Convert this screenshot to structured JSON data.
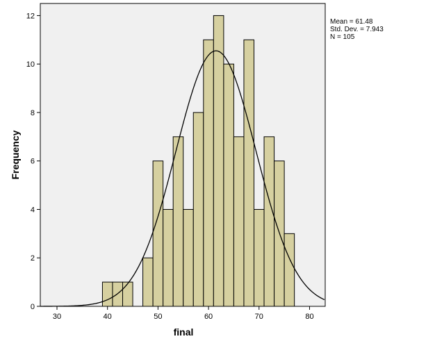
{
  "chart_data": {
    "type": "bar",
    "subtype": "histogram",
    "xlabel": "final",
    "ylabel": "Frequency",
    "xlim": [
      26.7,
      83.1
    ],
    "ylim": [
      0,
      12.5
    ],
    "x_ticks": [
      30,
      40,
      50,
      60,
      70,
      80
    ],
    "y_ticks": [
      0,
      2,
      4,
      6,
      8,
      10,
      12
    ],
    "bin_width": 2,
    "bins": [
      {
        "start": 39,
        "end": 41,
        "count": 1
      },
      {
        "start": 41,
        "end": 43,
        "count": 1
      },
      {
        "start": 43,
        "end": 45,
        "count": 1
      },
      {
        "start": 47,
        "end": 49,
        "count": 2
      },
      {
        "start": 49,
        "end": 51,
        "count": 6
      },
      {
        "start": 51,
        "end": 53,
        "count": 4
      },
      {
        "start": 53,
        "end": 55,
        "count": 7
      },
      {
        "start": 55,
        "end": 57,
        "count": 4
      },
      {
        "start": 57,
        "end": 59,
        "count": 8
      },
      {
        "start": 59,
        "end": 61,
        "count": 11
      },
      {
        "start": 61,
        "end": 63,
        "count": 12
      },
      {
        "start": 63,
        "end": 65,
        "count": 10
      },
      {
        "start": 65,
        "end": 67,
        "count": 7
      },
      {
        "start": 67,
        "end": 69,
        "count": 11
      },
      {
        "start": 69,
        "end": 71,
        "count": 4
      },
      {
        "start": 71,
        "end": 73,
        "count": 7
      },
      {
        "start": 73,
        "end": 75,
        "count": 6
      },
      {
        "start": 75,
        "end": 77,
        "count": 3
      }
    ],
    "normal_curve": {
      "mean": 61.48,
      "sd": 7.943,
      "n": 105
    },
    "grid": false,
    "legend_position": "top-right",
    "colors": {
      "bar_fill": "#d6d0a0",
      "bar_stroke": "#000000",
      "plot_background": "#f0f0f0",
      "curve": "#000000"
    }
  },
  "stats": {
    "mean": "Mean = 61.48",
    "sd": "Std. Dev. = 7.943",
    "n": "N = 105"
  }
}
